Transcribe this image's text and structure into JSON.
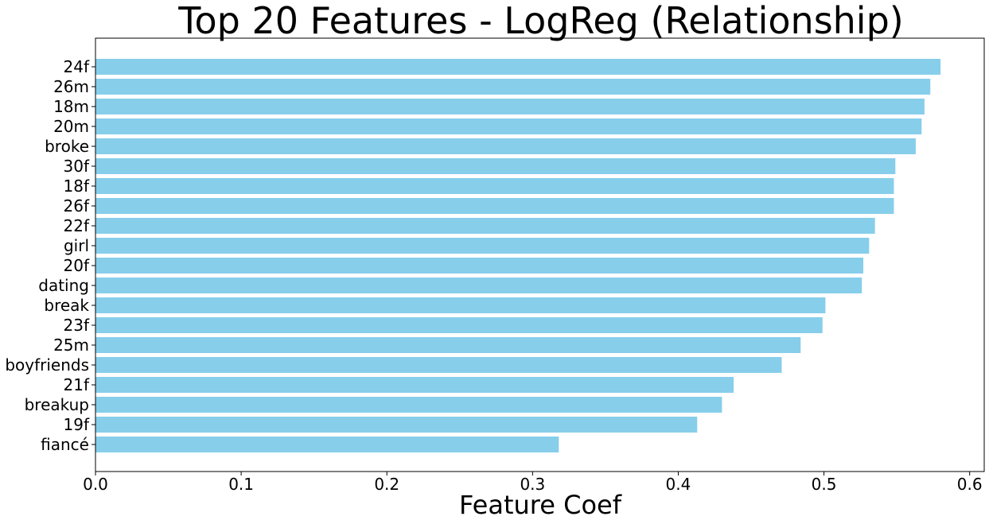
{
  "chart_data": {
    "type": "bar",
    "orientation": "horizontal",
    "title": "Top 20 Features - LogReg (Relationship)",
    "xlabel": "Feature Coef",
    "ylabel": "",
    "categories": [
      "24f",
      "26m",
      "18m",
      "20m",
      "broke",
      "30f",
      "18f",
      "26f",
      "22f",
      "girl",
      "20f",
      "dating",
      "break",
      "23f",
      "25m",
      "boyfriends",
      "21f",
      "breakup",
      "19f",
      "fiancé"
    ],
    "values": [
      0.58,
      0.573,
      0.569,
      0.567,
      0.563,
      0.549,
      0.548,
      0.548,
      0.535,
      0.531,
      0.527,
      0.526,
      0.501,
      0.499,
      0.484,
      0.471,
      0.438,
      0.43,
      0.413,
      0.318
    ],
    "xlim": [
      0,
      0.61
    ],
    "xticks": [
      0.0,
      0.1,
      0.2,
      0.3,
      0.4,
      0.5,
      0.6
    ],
    "xtick_labels": [
      "0.0",
      "0.1",
      "0.2",
      "0.3",
      "0.4",
      "0.5",
      "0.6"
    ],
    "bar_color": "#87CEEB",
    "grid": false,
    "legend": "none"
  }
}
